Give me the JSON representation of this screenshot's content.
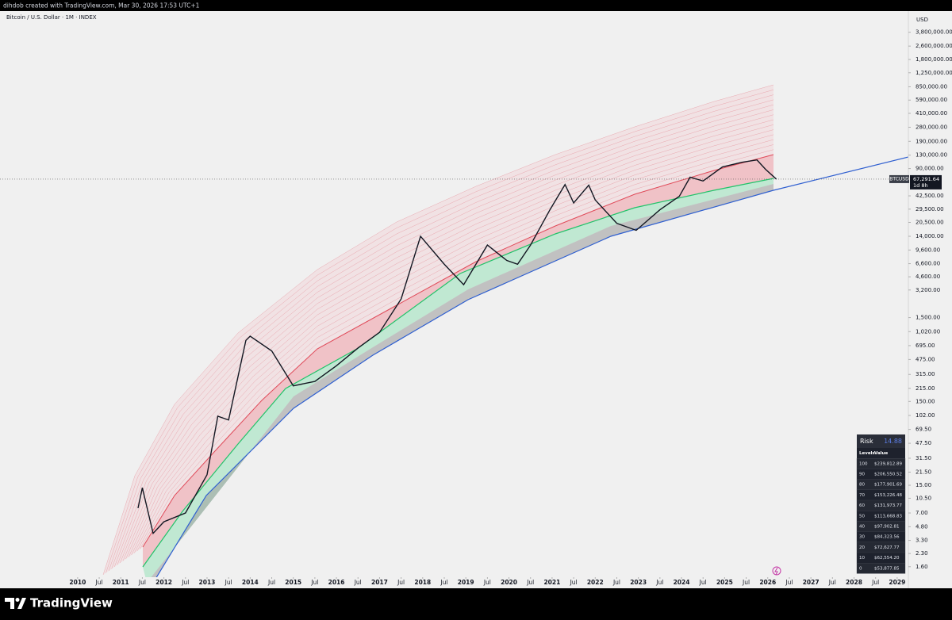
{
  "header": {
    "text": "dihdob created with TradingView.com, Mar 30, 2026 17:53 UTC+1"
  },
  "footer": {
    "brand": "TradingView"
  },
  "risk_table": {
    "title": "Risk",
    "value": "14.88",
    "columns": [
      "Levels",
      "Value"
    ],
    "rows": [
      [
        100,
        "$239,812.89"
      ],
      [
        90,
        "$206,550.52"
      ],
      [
        80,
        "$177,901.69"
      ],
      [
        70,
        "$153,226.48"
      ],
      [
        60,
        "$131,973.77"
      ],
      [
        50,
        "$113,668.83"
      ],
      [
        40,
        "$97,902.81"
      ],
      [
        30,
        "$84,323.56"
      ],
      [
        20,
        "$72,627.77"
      ],
      [
        10,
        "$62,554.20"
      ],
      [
        0,
        "$53,877.85"
      ]
    ]
  },
  "chart_data": {
    "type": "line",
    "title": "Bitcoin / U.S. Dollar · 1M · INDEX",
    "y_axis_label": "USD",
    "log_scale": true,
    "x": [
      2011.4,
      2011.5,
      2011.75,
      2012.0,
      2012.5,
      2013.0,
      2013.25,
      2013.5,
      2013.9,
      2014.0,
      2014.5,
      2015.0,
      2015.5,
      2016.0,
      2016.5,
      2017.0,
      2017.5,
      2017.95,
      2018.5,
      2018.95,
      2019.5,
      2019.95,
      2020.2,
      2020.5,
      2020.95,
      2021.3,
      2021.5,
      2021.85,
      2022.0,
      2022.5,
      2022.95,
      2023.5,
      2023.95,
      2024.2,
      2024.5,
      2024.95,
      2025.4,
      2025.75,
      2025.95,
      2026.2
    ],
    "series": [
      {
        "name": "BTCUSD",
        "color": "#131722",
        "values": [
          8,
          14,
          4,
          5.5,
          7,
          20,
          100,
          90,
          800,
          900,
          600,
          230,
          260,
          400,
          650,
          1000,
          2500,
          14000,
          6500,
          3700,
          11000,
          7200,
          6500,
          11000,
          29000,
          58000,
          35000,
          57000,
          38000,
          20000,
          16500,
          29000,
          42000,
          71000,
          64000,
          94000,
          107000,
          114000,
          88000,
          67291.64
        ]
      }
    ],
    "last_price": {
      "value": 67291.64,
      "label": "67,291.64"
    },
    "countdown": "1d 8h",
    "xlim": [
      2008.2,
      2029.26
    ],
    "xticks": [
      2010,
      {
        "value": 2010.5,
        "label": "Jul"
      },
      2011,
      {
        "value": 2011.5,
        "label": "Jul"
      },
      2012,
      {
        "value": 2012.5,
        "label": "Jul"
      },
      2013,
      {
        "value": 2013.5,
        "label": "Jul"
      },
      2014,
      {
        "value": 2014.5,
        "label": "Jul"
      },
      2015,
      {
        "value": 2015.5,
        "label": "Jul"
      },
      2016,
      {
        "value": 2016.5,
        "label": "Jul"
      },
      2017,
      {
        "value": 2017.5,
        "label": "Jul"
      },
      2018,
      {
        "value": 2018.5,
        "label": "Jul"
      },
      2019,
      {
        "value": 2019.5,
        "label": "Jul"
      },
      2020,
      {
        "value": 2020.5,
        "label": "Jul"
      },
      2021,
      {
        "value": 2021.5,
        "label": "Jul"
      },
      2022,
      {
        "value": 2022.5,
        "label": "Jul"
      },
      2023,
      {
        "value": 2023.5,
        "label": "Jul"
      },
      2024,
      {
        "value": 2024.5,
        "label": "Jul"
      },
      2025,
      {
        "value": 2025.5,
        "label": "Jul"
      },
      2026,
      {
        "value": 2026.5,
        "label": "Jul"
      },
      2027,
      {
        "value": 2027.5,
        "label": "Jul"
      },
      2028,
      {
        "value": 2028.5,
        "label": "Jul"
      },
      2029
    ],
    "ylim": [
      1.2,
      6800000
    ],
    "yticks": [
      {
        "value": 3800000,
        "label": "3,800,000.00"
      },
      {
        "value": 2600000,
        "label": "2,600,000.00"
      },
      {
        "value": 1800000,
        "label": "1,800,000.00"
      },
      {
        "value": 1250000,
        "label": "1,250,000.00"
      },
      {
        "value": 850000,
        "label": "850,000.00"
      },
      {
        "value": 590000,
        "label": "590,000.00"
      },
      {
        "value": 410000,
        "label": "410,000.00"
      },
      {
        "value": 280000,
        "label": "280,000.00"
      },
      {
        "value": 190000,
        "label": "190,000.00"
      },
      {
        "value": 130000,
        "label": "130,000.00"
      },
      {
        "value": 90000,
        "label": "90,000.00"
      },
      {
        "value": 42500,
        "label": "42,500.00"
      },
      {
        "value": 29500,
        "label": "29,500.00"
      },
      {
        "value": 20500,
        "label": "20,500.00"
      },
      {
        "value": 14000,
        "label": "14,000.00"
      },
      {
        "value": 9600,
        "label": "9,600.00"
      },
      {
        "value": 6600,
        "label": "6,600.00"
      },
      {
        "value": 4600,
        "label": "4,600.00"
      },
      {
        "value": 3200,
        "label": "3,200.00"
      },
      {
        "value": 1500,
        "label": "1,500.00"
      },
      {
        "value": 1020,
        "label": "1,020.00"
      },
      {
        "value": 695,
        "label": "695.00"
      },
      {
        "value": 475,
        "label": "475.00"
      },
      {
        "value": 315,
        "label": "315.00"
      },
      {
        "value": 215,
        "label": "215.00"
      },
      {
        "value": 150,
        "label": "150.00"
      },
      {
        "value": 102,
        "label": "102.00"
      },
      {
        "value": 69.5,
        "label": "69.50"
      },
      {
        "value": 47.5,
        "label": "47.50"
      },
      {
        "value": 31.5,
        "label": "31.50"
      },
      {
        "value": 21.5,
        "label": "21.50"
      },
      {
        "value": 15,
        "label": "15.00"
      },
      {
        "value": 10.5,
        "label": "10.50"
      },
      {
        "value": 7,
        "label": "7.00"
      },
      {
        "value": 4.8,
        "label": "4.80"
      },
      {
        "value": 3.3,
        "label": "3.30"
      },
      {
        "value": 2.3,
        "label": "2.30"
      },
      {
        "value": 1.6,
        "label": "1.60"
      }
    ]
  }
}
